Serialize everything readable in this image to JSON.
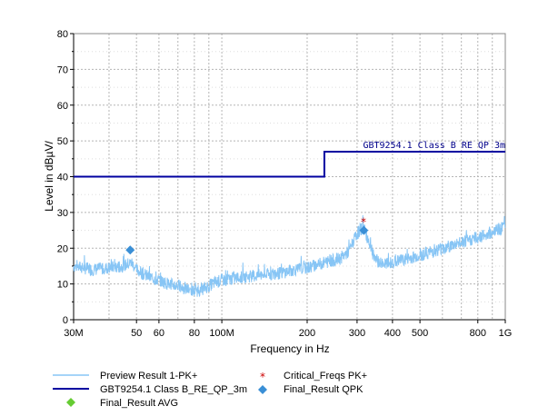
{
  "chart_data": {
    "type": "line",
    "xlabel": "Frequency in Hz",
    "ylabel": "Level in dBµV/",
    "x_scale": "log",
    "xlim": [
      30000000,
      1000000000
    ],
    "ylim": [
      0,
      80
    ],
    "grid": true,
    "x_ticks": [
      {
        "value": 30000000,
        "label": "30M"
      },
      {
        "value": 50000000,
        "label": "50"
      },
      {
        "value": 60000000,
        "label": "60"
      },
      {
        "value": 80000000,
        "label": "80"
      },
      {
        "value": 100000000,
        "label": "100M"
      },
      {
        "value": 200000000,
        "label": "200"
      },
      {
        "value": 300000000,
        "label": "300"
      },
      {
        "value": 400000000,
        "label": "400"
      },
      {
        "value": 500000000,
        "label": "500"
      },
      {
        "value": 800000000,
        "label": "800"
      },
      {
        "value": 1000000000,
        "label": "1G"
      }
    ],
    "y_ticks": [
      0,
      10,
      20,
      30,
      40,
      50,
      60,
      70,
      80
    ],
    "limit_line": {
      "name": "GBT9254.1 Class B_RE_QP_3m",
      "label": "GBT9254.1 Class B RE QP 3m",
      "color": "#0000a0",
      "points": [
        [
          30000000,
          40
        ],
        [
          230000000,
          40
        ],
        [
          230000000,
          47
        ],
        [
          1000000000,
          47
        ]
      ]
    },
    "preview": {
      "name": "Preview Result 1-PK+",
      "color": "#87c5f5",
      "points": [
        [
          30000000,
          15
        ],
        [
          35000000,
          14
        ],
        [
          40000000,
          14.5
        ],
        [
          45000000,
          15
        ],
        [
          48000000,
          16
        ],
        [
          50000000,
          14
        ],
        [
          55000000,
          12
        ],
        [
          60000000,
          11
        ],
        [
          65000000,
          10
        ],
        [
          70000000,
          9.5
        ],
        [
          75000000,
          8.5
        ],
        [
          80000000,
          8
        ],
        [
          85000000,
          8.5
        ],
        [
          90000000,
          9.5
        ],
        [
          95000000,
          10.5
        ],
        [
          100000000,
          11
        ],
        [
          120000000,
          12
        ],
        [
          140000000,
          12.5
        ],
        [
          160000000,
          13
        ],
        [
          180000000,
          14
        ],
        [
          200000000,
          14.5
        ],
        [
          230000000,
          16
        ],
        [
          260000000,
          17
        ],
        [
          280000000,
          19
        ],
        [
          300000000,
          24
        ],
        [
          315000000,
          26
        ],
        [
          330000000,
          22
        ],
        [
          345000000,
          17
        ],
        [
          360000000,
          16
        ],
        [
          380000000,
          15.5
        ],
        [
          400000000,
          16
        ],
        [
          450000000,
          17
        ],
        [
          500000000,
          18
        ],
        [
          600000000,
          20
        ],
        [
          700000000,
          21.5
        ],
        [
          800000000,
          23
        ],
        [
          900000000,
          24.5
        ],
        [
          1000000000,
          26
        ]
      ]
    },
    "critical_freqs_pk": {
      "name": "Critical_Freqs PK+",
      "color": "#cc0000",
      "points": [
        [
          316000000,
          27.5
        ]
      ]
    },
    "final_qpk": {
      "name": "Final_Result QPK",
      "color": "#3a8fd6",
      "points": [
        [
          47500000,
          19.5
        ],
        [
          317000000,
          25
        ]
      ]
    },
    "final_avg": {
      "name": "Final_Result AVG",
      "color": "#66cc33",
      "points": []
    },
    "legend": {
      "placement": "bottom",
      "entries": [
        {
          "key": "preview",
          "label": "Preview Result 1-PK+"
        },
        {
          "key": "limit",
          "label": "GBT9254.1 Class B_RE_QP_3m"
        },
        {
          "key": "avg",
          "label": "Final_Result AVG"
        },
        {
          "key": "critical",
          "label": "Critical_Freqs PK+"
        },
        {
          "key": "qpk",
          "label": "Final_Result QPK"
        }
      ]
    }
  }
}
